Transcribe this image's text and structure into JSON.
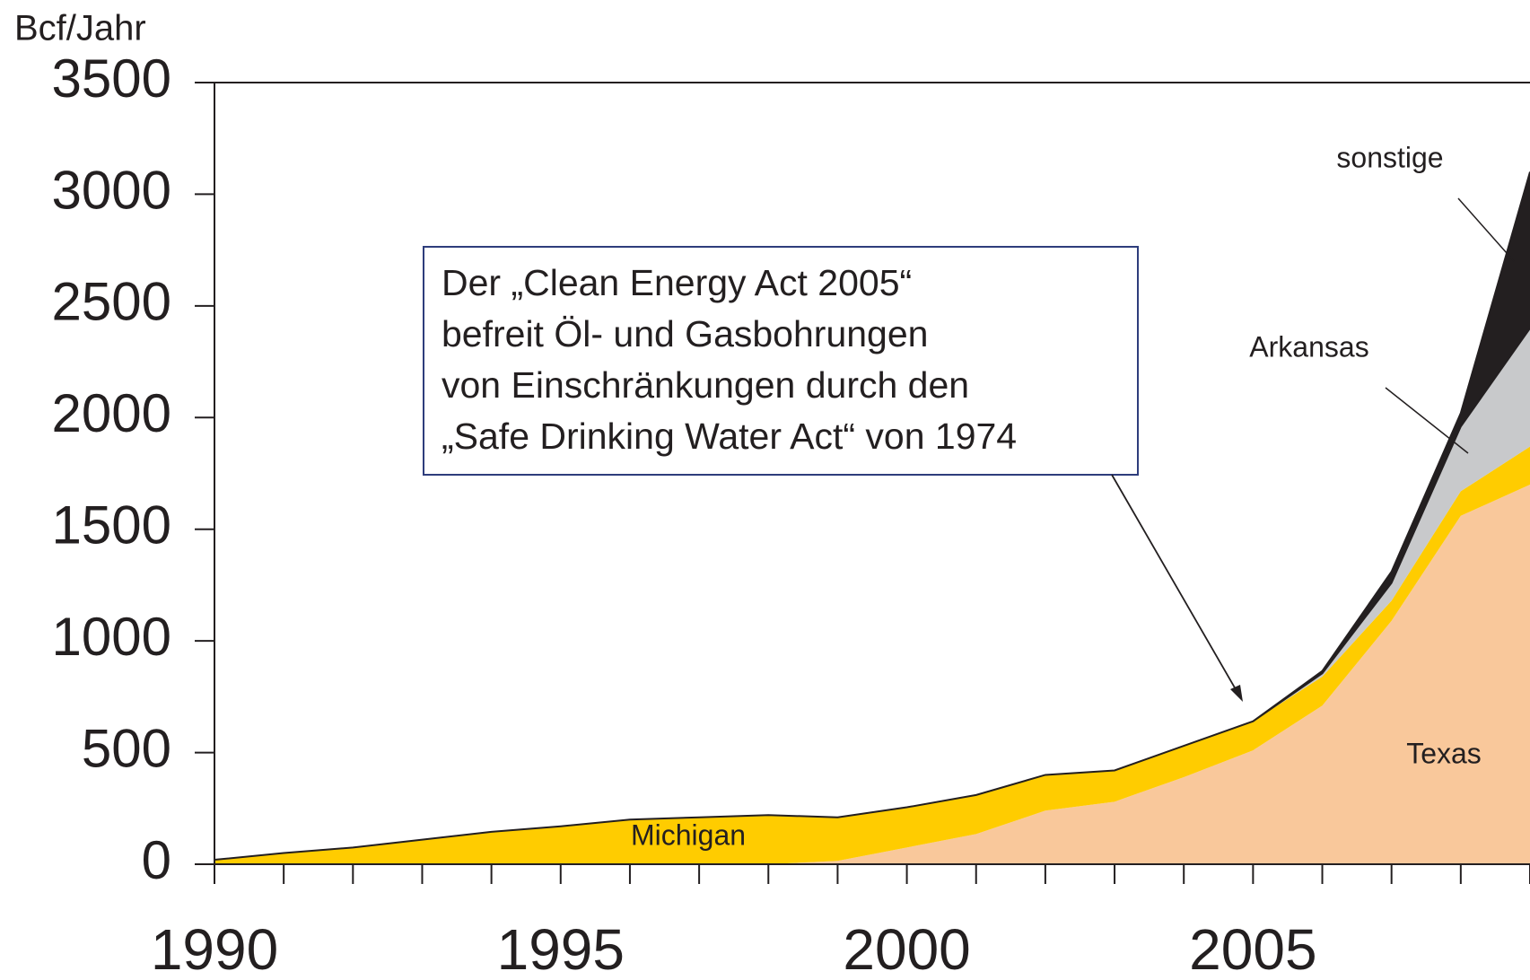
{
  "chart_data": {
    "type": "stacked_area",
    "y_label": "Bcf/Jahr",
    "x": [
      1990,
      1991,
      1992,
      1993,
      1994,
      1995,
      1996,
      1997,
      1998,
      1999,
      2000,
      2001,
      2002,
      2003,
      2004,
      2005,
      2006,
      2007,
      2008,
      2009
    ],
    "series": [
      {
        "name": "Texas",
        "color": "#f9c89b",
        "values": [
          0,
          0,
          0,
          0,
          0,
          0,
          0,
          0,
          0,
          15,
          75,
          135,
          240,
          280,
          390,
          510,
          710,
          1090,
          1560,
          1700
        ]
      },
      {
        "name": "Michigan",
        "color": "#ffcc00",
        "values": [
          20,
          50,
          75,
          110,
          145,
          170,
          200,
          210,
          220,
          195,
          180,
          175,
          160,
          140,
          140,
          130,
          130,
          90,
          110,
          170
        ]
      },
      {
        "name": "Arkansas",
        "color": "#c8c9cb",
        "values": [
          0,
          0,
          0,
          0,
          0,
          0,
          0,
          0,
          0,
          0,
          0,
          0,
          0,
          0,
          0,
          0,
          15,
          80,
          290,
          530
        ]
      },
      {
        "name": "sonstige",
        "color": "#231f20",
        "values": [
          0,
          0,
          0,
          0,
          0,
          0,
          0,
          0,
          0,
          0,
          0,
          0,
          0,
          0,
          0,
          0,
          10,
          50,
          60,
          700
        ]
      }
    ],
    "xlim": [
      1990,
      2009
    ],
    "xticks": [
      1990,
      1995,
      2000,
      2005
    ],
    "ylim": [
      0,
      3500
    ],
    "yticks": [
      0,
      500,
      1000,
      1500,
      2000,
      2500,
      3000,
      3500
    ],
    "annotation": [
      "Der „Clean Energy Act 2005“",
      "befreit Öl- und Gasbohrungen",
      "von Einschränkungen durch den",
      "„Safe Drinking Water Act“ von 1974"
    ]
  }
}
